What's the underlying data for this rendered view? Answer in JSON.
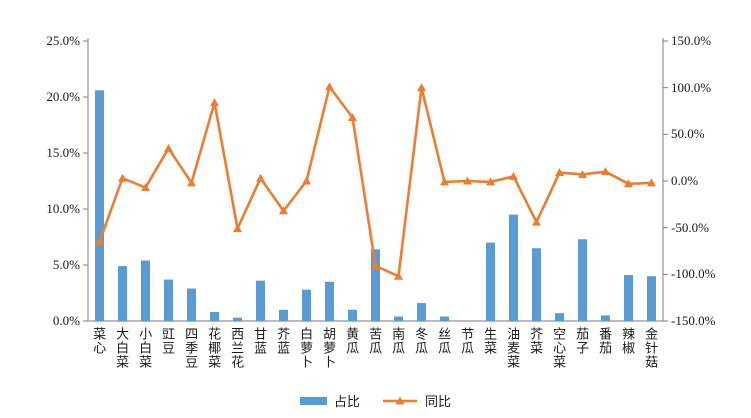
{
  "chart_data": {
    "type": "bar",
    "subtype": "combo-bar-line-dual-axis",
    "title": "",
    "grid": false,
    "categories": [
      "菜心",
      "大白菜",
      "小白菜",
      "豇豆",
      "四季豆",
      "花椰菜",
      "西兰花",
      "甘蓝",
      "芥蓝",
      "白萝卜",
      "胡萝卜",
      "黄瓜",
      "苦瓜",
      "南瓜",
      "冬瓜",
      "丝瓜",
      "节瓜",
      "生菜",
      "油麦菜",
      "芥菜",
      "空心菜",
      "茄子",
      "番茄",
      "辣椒",
      "金针菇"
    ],
    "series": [
      {
        "name": "占比",
        "type": "bar",
        "axis": "left",
        "unit": "%",
        "values": [
          20.6,
          4.9,
          5.4,
          3.7,
          2.9,
          0.8,
          0.3,
          3.6,
          1.0,
          2.8,
          3.5,
          1.0,
          6.4,
          0.4,
          1.6,
          0.4,
          0.0,
          7.0,
          9.5,
          6.5,
          0.7,
          7.3,
          0.5,
          4.1,
          4.0
        ]
      },
      {
        "name": "同比",
        "type": "line",
        "axis": "right",
        "unit": "%",
        "marker": "triangle",
        "values": [
          -65,
          3,
          -7,
          35,
          -2,
          84,
          -51,
          3,
          -32,
          0,
          101,
          68,
          -91,
          -102,
          100,
          -1,
          0,
          -1,
          5,
          -44,
          9,
          7,
          10,
          -3,
          -2
        ]
      }
    ],
    "left_axis": {
      "min": 0,
      "max": 25,
      "step": 5,
      "tick_labels": [
        "0.0%",
        "5.0%",
        "10.0%",
        "15.0%",
        "20.0%",
        "25.0%"
      ]
    },
    "right_axis": {
      "min": -150,
      "max": 150,
      "step": 50,
      "tick_labels": [
        "-150.0%",
        "-100.0%",
        "-50.0%",
        "0.0%",
        "50.0%",
        "100.0%",
        "150.0%"
      ]
    },
    "legend": {
      "position": "bottom",
      "items": [
        "占比",
        "同比"
      ]
    }
  },
  "colors": {
    "bar": "#5B9BD5",
    "line": "#ED7D31",
    "axis": "#7F7F7F",
    "bottom_axis": "#A6A6A6",
    "text": "#1a1a1a",
    "background": "#FFFFFF"
  }
}
